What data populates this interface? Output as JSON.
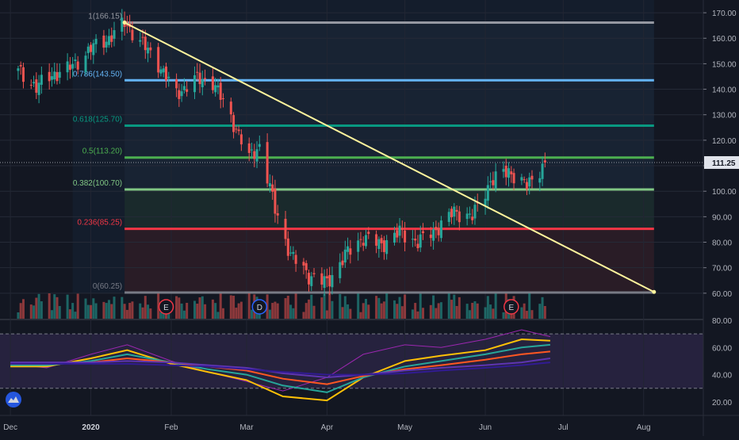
{
  "chart_data": [
    {
      "type": "candlestick",
      "title": "",
      "xlabel": "",
      "ylabel": "",
      "ylim": [
        50,
        175
      ],
      "x_ticks": [
        "Dec",
        "2020",
        "Feb",
        "Mar",
        "Apr",
        "May",
        "Jun",
        "Jul",
        "Aug"
      ],
      "y_ticks": [
        "60.00",
        "70.00",
        "80.00",
        "90.00",
        "100.00",
        "110.00",
        "120.00",
        "130.00",
        "140.00",
        "150.00",
        "160.00",
        "170.00"
      ],
      "last_price_label": "111.25",
      "last_price": 111.25,
      "fib_levels": [
        {
          "label": "1(166.15)",
          "value": 166.15,
          "color": "#9598a1"
        },
        {
          "label": "0.786(143.50)",
          "value": 143.5,
          "color": "#64b5f6"
        },
        {
          "label": "0.618(125.70)",
          "value": 125.7,
          "color": "#089981"
        },
        {
          "label": "0.5(113.20)",
          "value": 113.2,
          "color": "#4caf50"
        },
        {
          "label": "0.382(100.70)",
          "value": 100.7,
          "color": "#81c784"
        },
        {
          "label": "0.236(85.25)",
          "value": 85.25,
          "color": "#f23645"
        },
        {
          "label": "0(60.25)",
          "value": 60.25,
          "color": "#787b86"
        }
      ],
      "trendline": {
        "from": [
          "2020-01-14",
          166.15
        ],
        "to": [
          "2020-08-05",
          60.5
        ],
        "color": "#fff59d"
      },
      "event_markers": [
        {
          "label": "E",
          "date": "2020-01-30"
        },
        {
          "label": "D",
          "date": "2020-03-06"
        },
        {
          "label": "E",
          "date": "2020-06-11"
        }
      ],
      "price_series": [
        {
          "date": "2019-12-04",
          "close": 147
        },
        {
          "date": "2019-12-11",
          "close": 141
        },
        {
          "date": "2019-12-18",
          "close": 146
        },
        {
          "date": "2019-12-25",
          "close": 149
        },
        {
          "date": "2020-01-01",
          "close": 156
        },
        {
          "date": "2020-01-08",
          "close": 160
        },
        {
          "date": "2020-01-14",
          "close": 166
        },
        {
          "date": "2020-01-20",
          "close": 159
        },
        {
          "date": "2020-01-27",
          "close": 150
        },
        {
          "date": "2020-02-03",
          "close": 138
        },
        {
          "date": "2020-02-10",
          "close": 144
        },
        {
          "date": "2020-02-17",
          "close": 143
        },
        {
          "date": "2020-02-24",
          "close": 129
        },
        {
          "date": "2020-03-02",
          "close": 113
        },
        {
          "date": "2020-03-06",
          "close": 118
        },
        {
          "date": "2020-03-12",
          "close": 93
        },
        {
          "date": "2020-03-18",
          "close": 75
        },
        {
          "date": "2020-03-25",
          "close": 67
        },
        {
          "date": "2020-04-01",
          "close": 64
        },
        {
          "date": "2020-04-08",
          "close": 75
        },
        {
          "date": "2020-04-15",
          "close": 82
        },
        {
          "date": "2020-04-22",
          "close": 79
        },
        {
          "date": "2020-04-29",
          "close": 84
        },
        {
          "date": "2020-05-06",
          "close": 80
        },
        {
          "date": "2020-05-13",
          "close": 85
        },
        {
          "date": "2020-05-20",
          "close": 92
        },
        {
          "date": "2020-05-27",
          "close": 90
        },
        {
          "date": "2020-06-03",
          "close": 104
        },
        {
          "date": "2020-06-10",
          "close": 108
        },
        {
          "date": "2020-06-17",
          "close": 102
        },
        {
          "date": "2020-06-24",
          "close": 111.25
        }
      ]
    },
    {
      "type": "line",
      "title": "",
      "xlabel": "",
      "ylabel": "",
      "ylim": [
        10,
        80
      ],
      "y_ticks": [
        "20.00",
        "40.00",
        "60.00",
        "80.00"
      ],
      "levels": [
        30,
        70
      ],
      "band_color": "#7e57c2",
      "x": [
        "2019-12-01",
        "2019-12-15",
        "2020-01-01",
        "2020-01-15",
        "2020-02-01",
        "2020-02-15",
        "2020-03-01",
        "2020-03-15",
        "2020-04-01",
        "2020-04-15",
        "2020-05-01",
        "2020-05-15",
        "2020-06-01",
        "2020-06-15",
        "2020-06-26"
      ],
      "series": [
        {
          "values": [
            48,
            45,
            55,
            62,
            50,
            42,
            35,
            28,
            38,
            55,
            62,
            60,
            66,
            73,
            68
          ],
          "color": "#9c27b0"
        },
        {
          "values": [
            46,
            46,
            52,
            58,
            48,
            42,
            36,
            24,
            21,
            38,
            50,
            54,
            58,
            66,
            65
          ],
          "color": "#ffc107"
        },
        {
          "values": [
            47,
            47,
            50,
            55,
            49,
            44,
            40,
            32,
            27,
            38,
            46,
            50,
            55,
            60,
            62
          ],
          "color": "#26a69a"
        },
        {
          "values": [
            48,
            48,
            49,
            52,
            49,
            46,
            43,
            37,
            33,
            39,
            44,
            47,
            51,
            55,
            57
          ],
          "color": "#ff5722"
        },
        {
          "values": [
            49,
            49,
            49,
            50,
            49,
            47,
            45,
            41,
            38,
            40,
            43,
            45,
            47,
            49,
            52
          ],
          "color": "#5e35b1"
        },
        {
          "values": [
            48,
            48,
            48,
            48,
            47,
            46,
            44,
            42,
            40,
            40,
            41,
            43,
            45,
            47,
            49
          ],
          "color": "#311b92"
        }
      ]
    }
  ]
}
